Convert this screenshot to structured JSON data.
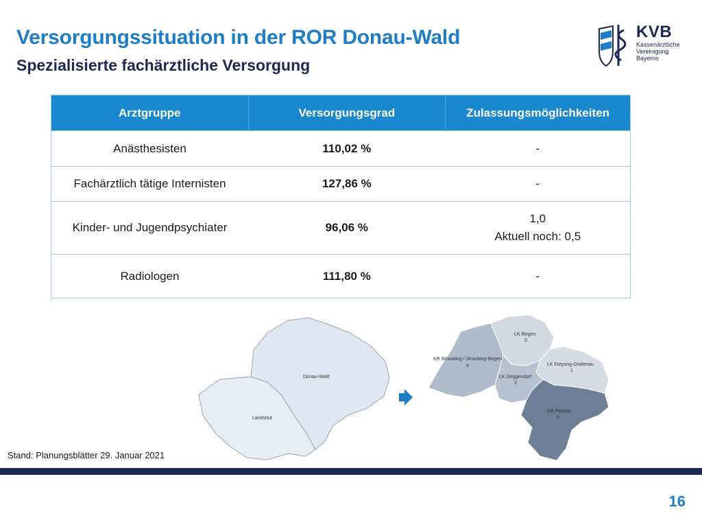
{
  "header": {
    "title": "Versorgungssituation in der ROR Donau-Wald",
    "subtitle": "Spezialisierte fachärztliche Versorgung"
  },
  "logo": {
    "name": "KVB",
    "line1": "Kassenärztliche",
    "line2": "Vereinigung",
    "line3": "Bayerns"
  },
  "table": {
    "headers": [
      "Arztgruppe",
      "Versorgungsgrad",
      "Zulassungsmöglichkeiten"
    ],
    "rows": [
      {
        "gruppe": "Anästhesisten",
        "grad": "110,02 %",
        "zulassung": "-",
        "zulassung2": ""
      },
      {
        "gruppe": "Fachärztlich tätige Internisten",
        "grad": "127,86 %",
        "zulassung": "-",
        "zulassung2": ""
      },
      {
        "gruppe": "Kinder- und Jugendpsychiater",
        "grad": "96,06 %",
        "zulassung": "1,0",
        "zulassung2": "Aktuell noch: 0,5"
      },
      {
        "gruppe": "Radiologen",
        "grad": "111,80 %",
        "zulassung": "-",
        "zulassung2": ""
      }
    ]
  },
  "map_left": {
    "labels": [
      "Donau-Wald",
      "Landshut"
    ]
  },
  "map_right": {
    "regions": [
      {
        "name": "LK Regen",
        "value": "0"
      },
      {
        "name": "KR Straubing / Straubing-Bogen",
        "value": "4"
      },
      {
        "name": "LK Freyung-Grafenau",
        "value": "1"
      },
      {
        "name": "LK Deggendorf",
        "value": "2"
      },
      {
        "name": "KR Passau",
        "value": "0"
      }
    ]
  },
  "colors": {
    "accent": "#1d7dc5",
    "navy": "#1a2a55",
    "table_header": "#1a88cf"
  },
  "footer": {
    "stand": "Stand: Planungsblätter 29. Januar 2021",
    "page": "16"
  }
}
